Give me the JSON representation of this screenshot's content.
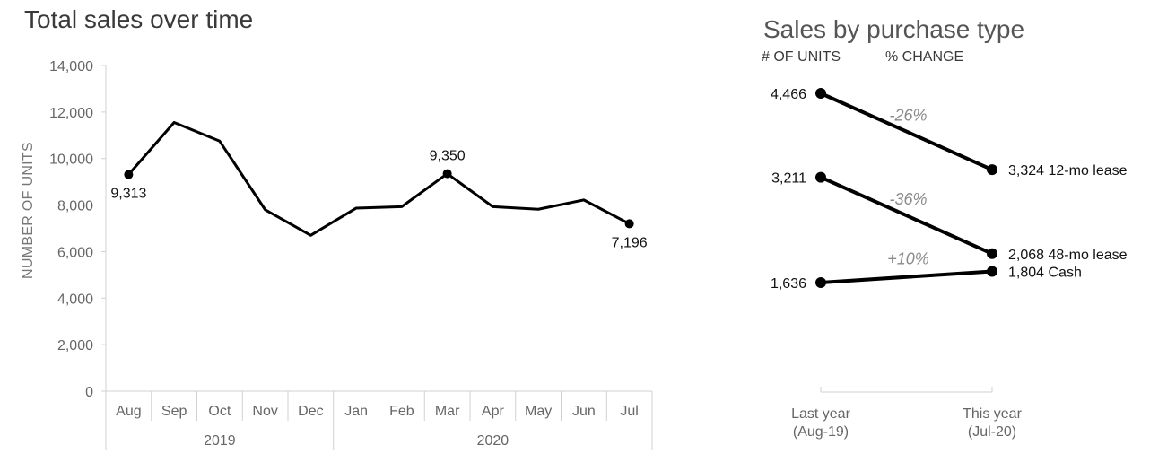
{
  "chart_data": [
    {
      "type": "line",
      "title": "Total sales over time",
      "ylabel": "NUMBER OF UNITS",
      "xlabel": "",
      "ylim": [
        0,
        14000
      ],
      "yticks": [
        "0",
        "2,000",
        "4,000",
        "6,000",
        "8,000",
        "10,000",
        "12,000",
        "14,000"
      ],
      "categories": [
        "Aug",
        "Sep",
        "Oct",
        "Nov",
        "Dec",
        "Jan",
        "Feb",
        "Mar",
        "Apr",
        "May",
        "Jun",
        "Jul"
      ],
      "year_groups": [
        {
          "label": "2019",
          "months": 5
        },
        {
          "label": "2020",
          "months": 7
        }
      ],
      "series": [
        {
          "values": [
            9313,
            11550,
            10750,
            7800,
            6700,
            7870,
            7930,
            9350,
            7930,
            7820,
            8220,
            7196
          ]
        }
      ],
      "markers": [
        {
          "index": 0,
          "label": "9,313",
          "position": "below"
        },
        {
          "index": 7,
          "label": "9,350",
          "position": "above"
        },
        {
          "index": 11,
          "label": "7,196",
          "position": "below"
        }
      ]
    },
    {
      "type": "line",
      "subtype": "slope",
      "title": "Sales by purchase type",
      "header_units": "# OF UNITS",
      "header_change": "% CHANGE",
      "ylim": [
        1000,
        5000
      ],
      "categories": [
        {
          "line1": "Last year",
          "line2": "(Aug-19)"
        },
        {
          "line1": "This year",
          "line2": "(Jul-20)"
        }
      ],
      "series": [
        {
          "name": "12-mo lease",
          "start": 4466,
          "end": 3324,
          "start_label": "4,466",
          "end_label": "3,324 12-mo lease",
          "change": "-26%"
        },
        {
          "name": "48-mo lease",
          "start": 3211,
          "end": 2068,
          "start_label": "3,211",
          "end_label": "2,068 48-mo lease",
          "change": "-36%"
        },
        {
          "name": "Cash",
          "start": 1636,
          "end": 1804,
          "start_label": "1,636",
          "end_label": "1,804 Cash",
          "change": "+10%"
        }
      ]
    }
  ]
}
